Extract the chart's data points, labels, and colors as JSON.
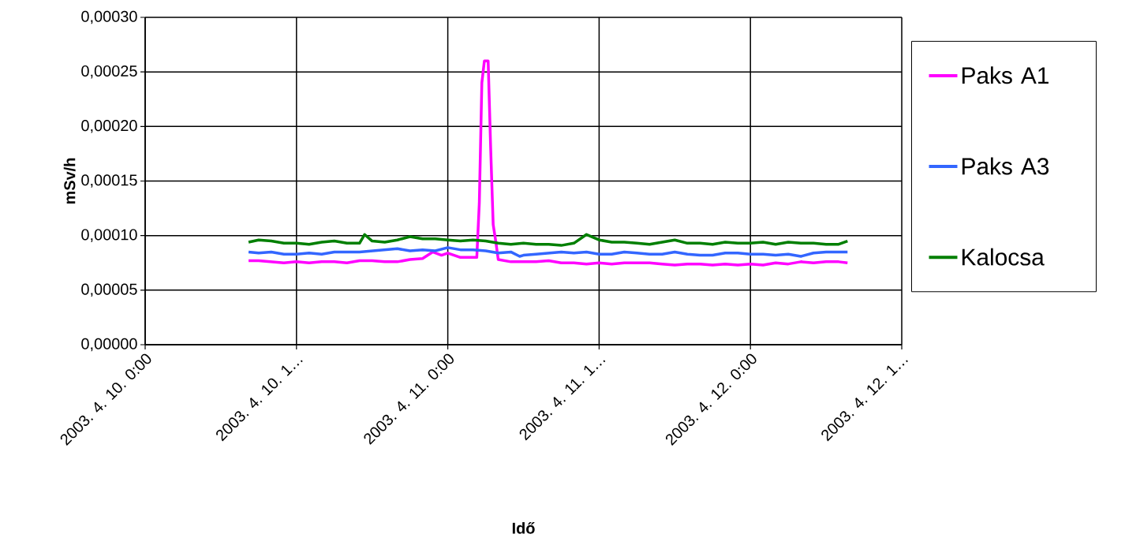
{
  "chart_data": {
    "type": "line",
    "xlabel": "Idő",
    "ylabel": "mSv/h",
    "xlim": [
      "2003-04-10T00:00",
      "2003-04-12T12:00"
    ],
    "ylim": [
      0,
      0.0003
    ],
    "xticks": [
      {
        "value": "2003-04-10T00:00",
        "label": "2003. 4. 10. 0:00"
      },
      {
        "value": "2003-04-10T12:00",
        "label": "2003. 4. 10. 1…"
      },
      {
        "value": "2003-04-11T00:00",
        "label": "2003. 4. 11. 0:00"
      },
      {
        "value": "2003-04-11T12:00",
        "label": "2003. 4. 11. 1…"
      },
      {
        "value": "2003-04-12T00:00",
        "label": "2003. 4. 12. 0:00"
      },
      {
        "value": "2003-04-12T12:00",
        "label": "2003. 4. 12. 1…"
      }
    ],
    "yticks": [
      {
        "value": 0,
        "label": "0,00000"
      },
      {
        "value": 5e-05,
        "label": "0,00005"
      },
      {
        "value": 0.0001,
        "label": "0,00010"
      },
      {
        "value": 0.00015,
        "label": "0,00015"
      },
      {
        "value": 0.0002,
        "label": "0,00020"
      },
      {
        "value": 0.00025,
        "label": "0,00025"
      },
      {
        "value": 0.0003,
        "label": "0,00030"
      }
    ],
    "grid": true,
    "legend": "right",
    "marker": "none",
    "line_style": "solid",
    "series": [
      {
        "name": "Paks A1",
        "color": "#ff00ff",
        "x": [
          "2003-04-10T08:12",
          "2003-04-10T09:00",
          "2003-04-10T10:00",
          "2003-04-10T11:00",
          "2003-04-10T12:00",
          "2003-04-10T13:00",
          "2003-04-10T14:00",
          "2003-04-10T15:00",
          "2003-04-10T16:00",
          "2003-04-10T17:00",
          "2003-04-10T18:00",
          "2003-04-10T19:00",
          "2003-04-10T20:00",
          "2003-04-10T21:00",
          "2003-04-10T22:00",
          "2003-04-10T22:48",
          "2003-04-10T23:30",
          "2003-04-11T00:00",
          "2003-04-11T01:00",
          "2003-04-11T02:00",
          "2003-04-11T02:18",
          "2003-04-11T02:30",
          "2003-04-11T02:42",
          "2003-04-11T02:54",
          "2003-04-11T03:12",
          "2003-04-11T03:24",
          "2003-04-11T03:36",
          "2003-04-11T03:48",
          "2003-04-11T04:00",
          "2003-04-11T05:00",
          "2003-04-11T06:00",
          "2003-04-11T07:00",
          "2003-04-11T08:00",
          "2003-04-11T09:00",
          "2003-04-11T10:00",
          "2003-04-11T11:00",
          "2003-04-11T12:00",
          "2003-04-11T13:00",
          "2003-04-11T14:00",
          "2003-04-11T15:00",
          "2003-04-11T16:00",
          "2003-04-11T17:00",
          "2003-04-11T18:00",
          "2003-04-11T19:00",
          "2003-04-11T20:00",
          "2003-04-11T21:00",
          "2003-04-11T22:00",
          "2003-04-11T23:00",
          "2003-04-12T00:00",
          "2003-04-12T01:00",
          "2003-04-12T02:00",
          "2003-04-12T03:00",
          "2003-04-12T04:00",
          "2003-04-12T05:00",
          "2003-04-12T06:00",
          "2003-04-12T07:00",
          "2003-04-12T07:42"
        ],
        "values": [
          7.7e-05,
          7.7e-05,
          7.6e-05,
          7.5e-05,
          7.6e-05,
          7.5e-05,
          7.6e-05,
          7.6e-05,
          7.5e-05,
          7.7e-05,
          7.7e-05,
          7.6e-05,
          7.6e-05,
          7.8e-05,
          7.9e-05,
          8.5e-05,
          8.2e-05,
          8.4e-05,
          8e-05,
          8e-05,
          8e-05,
          0.00013,
          0.00024,
          0.00026,
          0.00026,
          0.00018,
          0.00011,
          9.5e-05,
          7.8e-05,
          7.6e-05,
          7.6e-05,
          7.6e-05,
          7.7e-05,
          7.5e-05,
          7.5e-05,
          7.4e-05,
          7.5e-05,
          7.4e-05,
          7.5e-05,
          7.5e-05,
          7.5e-05,
          7.4e-05,
          7.3e-05,
          7.4e-05,
          7.4e-05,
          7.3e-05,
          7.4e-05,
          7.3e-05,
          7.4e-05,
          7.3e-05,
          7.5e-05,
          7.4e-05,
          7.6e-05,
          7.5e-05,
          7.6e-05,
          7.6e-05,
          7.5e-05
        ]
      },
      {
        "name": "Paks A3",
        "color": "#3366ff",
        "x": [
          "2003-04-10T08:12",
          "2003-04-10T09:00",
          "2003-04-10T10:00",
          "2003-04-10T11:00",
          "2003-04-10T12:00",
          "2003-04-10T13:00",
          "2003-04-10T14:00",
          "2003-04-10T15:00",
          "2003-04-10T16:00",
          "2003-04-10T17:00",
          "2003-04-10T18:00",
          "2003-04-10T19:00",
          "2003-04-10T20:00",
          "2003-04-10T21:00",
          "2003-04-10T22:00",
          "2003-04-10T23:00",
          "2003-04-11T00:00",
          "2003-04-11T01:00",
          "2003-04-11T02:00",
          "2003-04-11T03:00",
          "2003-04-11T04:00",
          "2003-04-11T05:00",
          "2003-04-11T05:42",
          "2003-04-11T06:00",
          "2003-04-11T07:00",
          "2003-04-11T08:00",
          "2003-04-11T09:00",
          "2003-04-11T10:00",
          "2003-04-11T11:00",
          "2003-04-11T12:00",
          "2003-04-11T13:00",
          "2003-04-11T14:00",
          "2003-04-11T15:00",
          "2003-04-11T16:00",
          "2003-04-11T17:00",
          "2003-04-11T18:00",
          "2003-04-11T19:00",
          "2003-04-11T20:00",
          "2003-04-11T21:00",
          "2003-04-11T22:00",
          "2003-04-11T23:00",
          "2003-04-12T00:00",
          "2003-04-12T01:00",
          "2003-04-12T02:00",
          "2003-04-12T03:00",
          "2003-04-12T04:00",
          "2003-04-12T05:00",
          "2003-04-12T06:00",
          "2003-04-12T07:00",
          "2003-04-12T07:42"
        ],
        "values": [
          8.5e-05,
          8.4e-05,
          8.5e-05,
          8.3e-05,
          8.3e-05,
          8.4e-05,
          8.3e-05,
          8.5e-05,
          8.5e-05,
          8.5e-05,
          8.6e-05,
          8.7e-05,
          8.8e-05,
          8.6e-05,
          8.7e-05,
          8.6e-05,
          8.9e-05,
          8.7e-05,
          8.7e-05,
          8.6e-05,
          8.4e-05,
          8.5e-05,
          8.1e-05,
          8.2e-05,
          8.3e-05,
          8.4e-05,
          8.5e-05,
          8.4e-05,
          8.5e-05,
          8.3e-05,
          8.3e-05,
          8.5e-05,
          8.4e-05,
          8.3e-05,
          8.3e-05,
          8.5e-05,
          8.3e-05,
          8.2e-05,
          8.2e-05,
          8.4e-05,
          8.4e-05,
          8.3e-05,
          8.3e-05,
          8.2e-05,
          8.3e-05,
          8.1e-05,
          8.4e-05,
          8.5e-05,
          8.5e-05,
          8.5e-05
        ]
      },
      {
        "name": "Kalocsa",
        "color": "#007f00",
        "x": [
          "2003-04-10T08:12",
          "2003-04-10T09:00",
          "2003-04-10T10:00",
          "2003-04-10T11:00",
          "2003-04-10T12:00",
          "2003-04-10T13:00",
          "2003-04-10T14:00",
          "2003-04-10T15:00",
          "2003-04-10T16:00",
          "2003-04-10T17:00",
          "2003-04-10T17:24",
          "2003-04-10T18:00",
          "2003-04-10T19:00",
          "2003-04-10T20:00",
          "2003-04-10T21:00",
          "2003-04-10T22:00",
          "2003-04-10T23:00",
          "2003-04-11T00:00",
          "2003-04-11T01:00",
          "2003-04-11T02:00",
          "2003-04-11T03:00",
          "2003-04-11T04:00",
          "2003-04-11T05:00",
          "2003-04-11T06:00",
          "2003-04-11T07:00",
          "2003-04-11T08:00",
          "2003-04-11T09:00",
          "2003-04-11T10:00",
          "2003-04-11T11:00",
          "2003-04-11T12:00",
          "2003-04-11T13:00",
          "2003-04-11T14:00",
          "2003-04-11T15:00",
          "2003-04-11T16:00",
          "2003-04-11T17:00",
          "2003-04-11T18:00",
          "2003-04-11T19:00",
          "2003-04-11T20:00",
          "2003-04-11T21:00",
          "2003-04-11T22:00",
          "2003-04-11T23:00",
          "2003-04-12T00:00",
          "2003-04-12T01:00",
          "2003-04-12T02:00",
          "2003-04-12T03:00",
          "2003-04-12T04:00",
          "2003-04-12T05:00",
          "2003-04-12T06:00",
          "2003-04-12T07:00",
          "2003-04-12T07:42"
        ],
        "values": [
          9.4e-05,
          9.6e-05,
          9.5e-05,
          9.3e-05,
          9.3e-05,
          9.2e-05,
          9.4e-05,
          9.5e-05,
          9.3e-05,
          9.3e-05,
          0.000101,
          9.5e-05,
          9.4e-05,
          9.6e-05,
          9.9e-05,
          9.7e-05,
          9.7e-05,
          9.6e-05,
          9.5e-05,
          9.6e-05,
          9.5e-05,
          9.3e-05,
          9.2e-05,
          9.3e-05,
          9.2e-05,
          9.2e-05,
          9.1e-05,
          9.3e-05,
          0.000101,
          9.6e-05,
          9.4e-05,
          9.4e-05,
          9.3e-05,
          9.2e-05,
          9.4e-05,
          9.6e-05,
          9.3e-05,
          9.3e-05,
          9.2e-05,
          9.4e-05,
          9.3e-05,
          9.3e-05,
          9.4e-05,
          9.2e-05,
          9.4e-05,
          9.3e-05,
          9.3e-05,
          9.2e-05,
          9.2e-05,
          9.5e-05
        ]
      }
    ]
  }
}
